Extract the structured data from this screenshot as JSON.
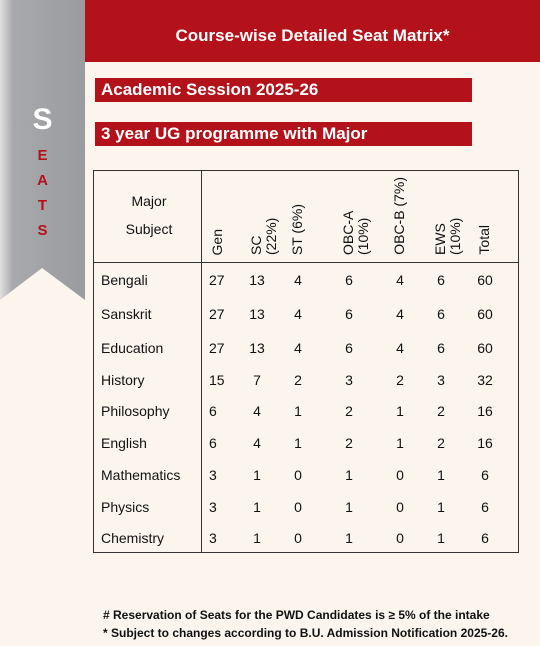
{
  "header": {
    "title": "Course-wise Detailed Seat Matrix*"
  },
  "ribbon": {
    "initial": "S",
    "letters": [
      "E",
      "A",
      "T",
      "S"
    ]
  },
  "session": "Academic Session 2025-26",
  "programme": "3 year UG programme with Major",
  "table": {
    "columns": [
      "Major Subject",
      "Gen",
      "SC (22%)",
      "ST (6%)",
      "OBC-A (10%)",
      "OBC-B (7%)",
      "EWS (10%)",
      "Total"
    ],
    "rows": [
      [
        "Bengali",
        "27",
        "13",
        "4",
        "6",
        "4",
        "6",
        "60"
      ],
      [
        "Sanskrit",
        "27",
        "13",
        "4",
        "6",
        "4",
        "6",
        "60"
      ],
      [
        "Education",
        "27",
        "13",
        "4",
        "6",
        "4",
        "6",
        "60"
      ],
      [
        "History",
        "15",
        "7",
        "2",
        "3",
        "2",
        "3",
        "32"
      ],
      [
        "Philosophy",
        "6",
        "4",
        "1",
        "2",
        "1",
        "2",
        "16"
      ],
      [
        "English",
        "6",
        "4",
        "1",
        "2",
        "1",
        "2",
        "16"
      ],
      [
        "Mathematics",
        "3",
        "1",
        "0",
        "1",
        "0",
        "1",
        "6"
      ],
      [
        "Physics",
        "3",
        "1",
        "0",
        "1",
        "0",
        "1",
        "6"
      ],
      [
        "Chemistry",
        "3",
        "1",
        "0",
        "1",
        "0",
        "1",
        "6"
      ]
    ]
  },
  "footnotes": [
    "# Reservation of Seats for the PWD Candidates is ≥ 5% of the intake",
    "* Subject to changes according to B.U. Admission Notification 2025-26."
  ]
}
